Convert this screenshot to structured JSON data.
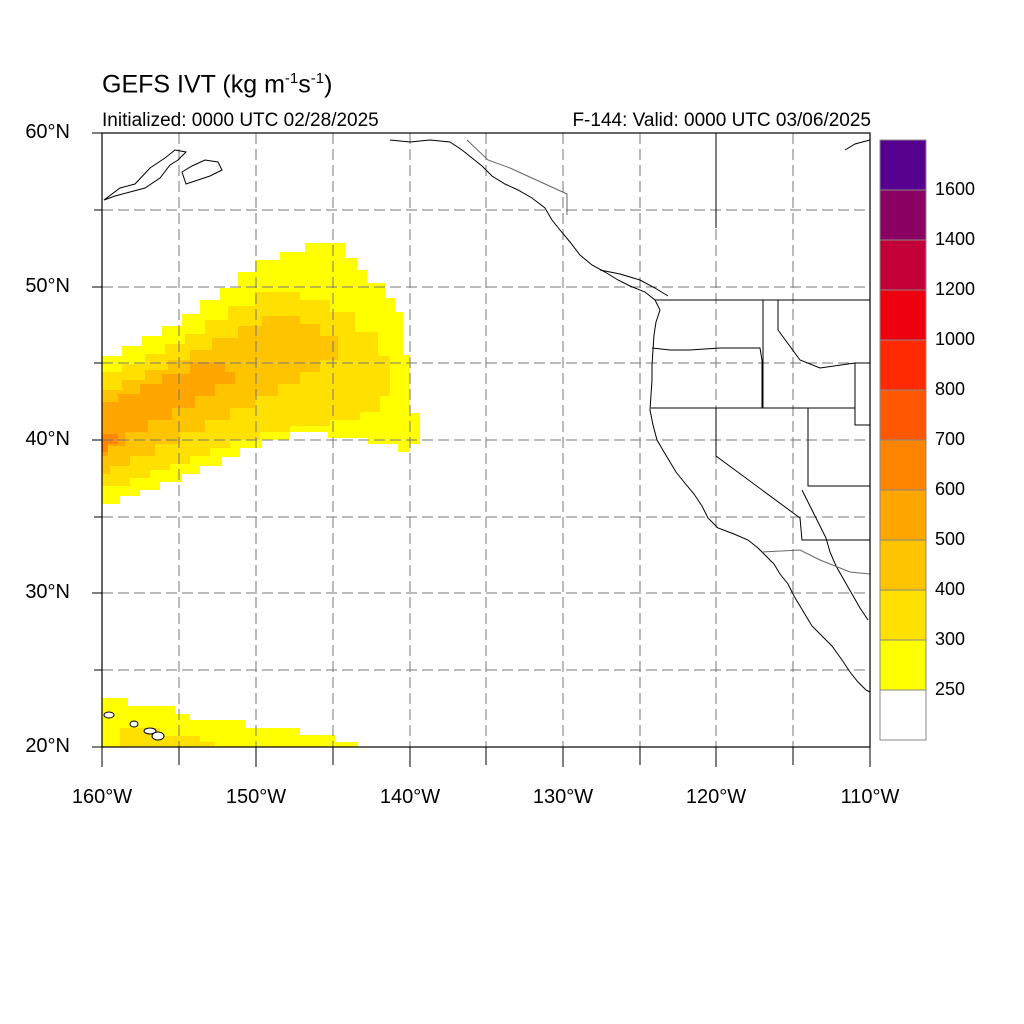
{
  "title": {
    "main": "GEFS IVT (kg m",
    "exp1": "-1",
    "mid": "s",
    "exp2": "-1",
    "end": ")"
  },
  "subtitle": {
    "initialized": "Initialized: 0000 UTC 02/28/2025",
    "valid": "F-144: Valid: 0000 UTC 03/06/2025"
  },
  "map": {
    "lat_range": [
      20,
      60
    ],
    "lon_range": [
      -160,
      -110
    ],
    "lat_labels": [
      "60°N",
      "50°N",
      "40°N",
      "30°N",
      "20°N"
    ],
    "lon_labels": [
      "160°W",
      "150°W",
      "140°W",
      "130°W",
      "120°W",
      "110°W"
    ]
  },
  "colorbar": {
    "labels": [
      "1600",
      "1400",
      "1200",
      "1000",
      "800",
      "700",
      "600",
      "500",
      "400",
      "300",
      "250"
    ],
    "colors": [
      "#55008f",
      "#8b0063",
      "#c40039",
      "#ee0010",
      "#ff2a00",
      "#ff5800",
      "#ff8400",
      "#ffa600",
      "#ffc400",
      "#ffe000",
      "#ffff00",
      "#ffffff"
    ]
  },
  "ivt_field": {
    "units": "kg m-1 s-1",
    "regions": [
      {
        "name": "atmospheric-river",
        "level_min": 250,
        "level_max": 600,
        "peak_lat": 40,
        "peak_lon": -159
      },
      {
        "name": "hawaii-moisture",
        "level_min": 250,
        "level_max": 300
      }
    ]
  }
}
